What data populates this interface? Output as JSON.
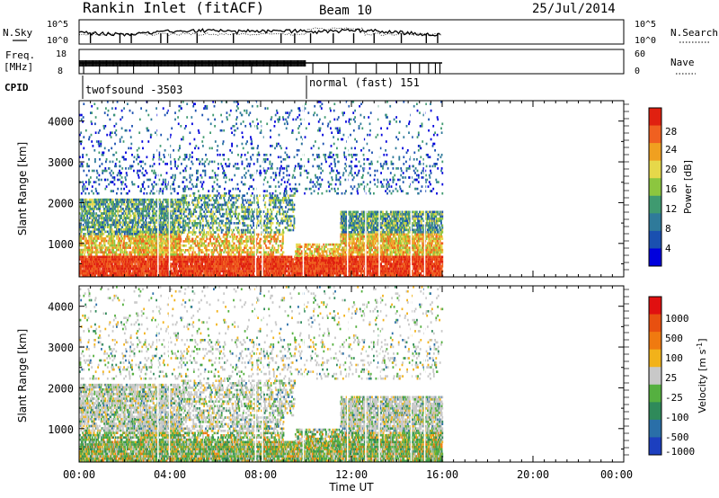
{
  "header": {
    "title": "Rankin Inlet (fitACF)",
    "beam": "Beam 10",
    "date": "25/Jul/2014"
  },
  "strips": {
    "nsky_label": "N.Sky",
    "nsky_ticks": [
      "10^5",
      "10^0"
    ],
    "nsearch_label": "N.Search",
    "freq_label_1": "Freq.",
    "freq_label_2": "[MHz]",
    "freq_ticks": [
      "18",
      "8"
    ],
    "nave_label": "Nave",
    "nave_ticks": [
      "60",
      "0"
    ],
    "cpid_label": "CPID",
    "cpid_1": "twofsound -3503",
    "cpid_2": "normal (fast) 151"
  },
  "chart_data": [
    {
      "type": "heatmap",
      "title": "",
      "xlabel": "Time UT",
      "ylabel": "Slant Range [km]",
      "x_ticks": [
        "00:00",
        "04:00",
        "08:00",
        "12:00",
        "16:00",
        "20:00",
        "00:00"
      ],
      "xlim_hours": [
        0,
        24
      ],
      "y_ticks": [
        1000,
        2000,
        3000,
        4000
      ],
      "ylim": [
        180,
        4500
      ],
      "data_extent_hours": [
        0,
        16
      ],
      "colorbar": {
        "label": "Power [dB]",
        "ticks": [
          "4",
          "8",
          "12",
          "16",
          "20",
          "24",
          "28"
        ],
        "range": [
          0,
          32
        ],
        "colors": [
          "#0000dd",
          "#1a50b0",
          "#2f7a9a",
          "#3f9a70",
          "#8cc63f",
          "#e6d84a",
          "#f0a020",
          "#f06020",
          "#e02010"
        ]
      }
    },
    {
      "type": "heatmap",
      "title": "",
      "xlabel": "Time UT",
      "ylabel": "Slant Range [km]",
      "x_ticks": [
        "00:00",
        "04:00",
        "08:00",
        "12:00",
        "16:00",
        "20:00",
        "00:00"
      ],
      "xlim_hours": [
        0,
        24
      ],
      "y_ticks": [
        1000,
        2000,
        3000,
        4000
      ],
      "ylim": [
        180,
        4500
      ],
      "data_extent_hours": [
        0,
        16
      ],
      "colorbar": {
        "label": "Velocity [m s^-1]",
        "ticks": [
          "1000",
          "500",
          "100",
          "25",
          "-25",
          "-100",
          "-500",
          "-1000"
        ],
        "colors": [
          "#1c3fbf",
          "#2a6fa8",
          "#2f8a5a",
          "#55b040",
          "#c8c8c8",
          "#f2b21a",
          "#f07a10",
          "#e85010",
          "#e01010"
        ]
      }
    }
  ],
  "xaxis": {
    "ticks": [
      "00:00",
      "04:00",
      "08:00",
      "12:00",
      "16:00",
      "20:00",
      "00:00"
    ],
    "label": "Time UT"
  },
  "yaxis": {
    "label": "Slant Range [km]",
    "ticks": [
      "1000",
      "2000",
      "3000",
      "4000"
    ]
  },
  "colorbars": {
    "power_label": "Power [dB]",
    "power_ticks": [
      "28",
      "24",
      "20",
      "16",
      "12",
      "8",
      "4"
    ],
    "velocity_label": "Velocity [m s",
    "velocity_label_sup": "-1",
    "velocity_ticks": [
      "1000",
      "500",
      "100",
      "25",
      "-25",
      "-100",
      "-500",
      "-1000"
    ]
  }
}
